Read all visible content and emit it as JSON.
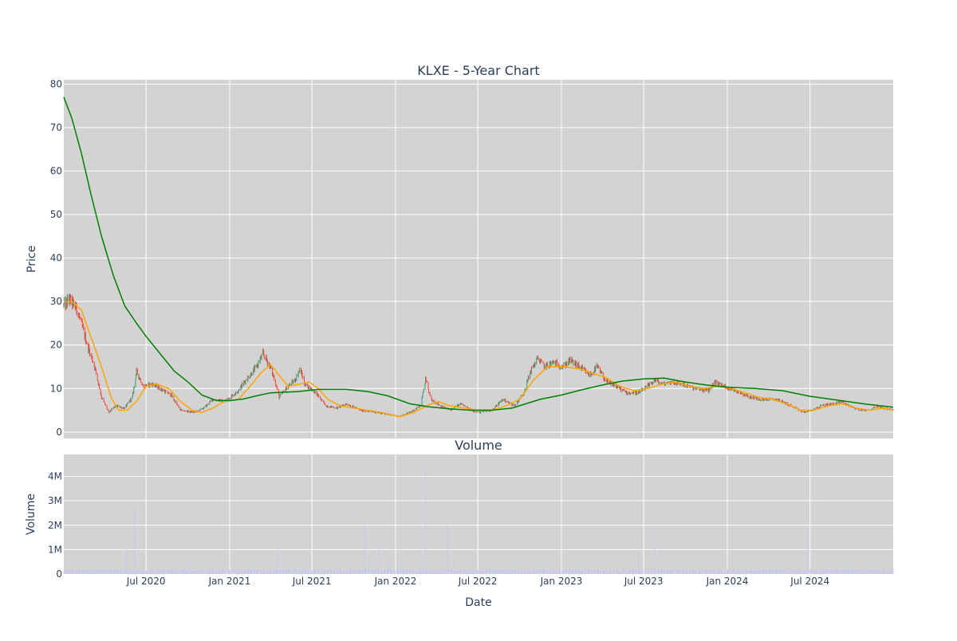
{
  "chart_data": [
    {
      "type": "candlestick",
      "title": "KLXE - 5-Year Chart",
      "xlabel": "",
      "ylabel": "Price",
      "xlim": [
        "2020-01-02",
        "2024-12-31"
      ],
      "ylim": [
        -1.5,
        81
      ],
      "y_ticks": [
        0,
        10,
        20,
        30,
        40,
        50,
        60,
        70,
        80
      ],
      "x_ticks": [
        "2020-07-01",
        "2021-01-01",
        "2021-07-01",
        "2022-01-01",
        "2022-07-01",
        "2023-01-01",
        "2023-07-01",
        "2024-01-01",
        "2024-07-01"
      ],
      "grid": true,
      "background_color": "#d3d3d3",
      "increasing_color": "#3d9970",
      "decreasing_color": "#ff4136",
      "close_anchors": [
        [
          "2020-01-02",
          29.0
        ],
        [
          "2020-01-15",
          30.5
        ],
        [
          "2020-02-01",
          28.0
        ],
        [
          "2020-02-20",
          21.0
        ],
        [
          "2020-03-10",
          15.0
        ],
        [
          "2020-03-25",
          8.0
        ],
        [
          "2020-04-10",
          4.5
        ],
        [
          "2020-04-25",
          6.0
        ],
        [
          "2020-05-15",
          5.5
        ],
        [
          "2020-06-01",
          8.0
        ],
        [
          "2020-06-10",
          14.0
        ],
        [
          "2020-06-25",
          10.5
        ],
        [
          "2020-07-15",
          11.0
        ],
        [
          "2020-08-01",
          10.0
        ],
        [
          "2020-08-25",
          8.5
        ],
        [
          "2020-09-15",
          5.0
        ],
        [
          "2020-10-15",
          4.5
        ],
        [
          "2020-11-05",
          5.5
        ],
        [
          "2020-11-25",
          7.5
        ],
        [
          "2020-12-20",
          7.0
        ],
        [
          "2021-01-15",
          9.0
        ],
        [
          "2021-02-10",
          12.5
        ],
        [
          "2021-03-01",
          15.0
        ],
        [
          "2021-03-15",
          18.0
        ],
        [
          "2021-03-29",
          15.5
        ],
        [
          "2021-04-10",
          12.0
        ],
        [
          "2021-04-20",
          8.0
        ],
        [
          "2021-05-05",
          10.0
        ],
        [
          "2021-05-25",
          12.0
        ],
        [
          "2021-06-05",
          14.5
        ],
        [
          "2021-06-15",
          11.0
        ],
        [
          "2021-07-10",
          9.0
        ],
        [
          "2021-08-01",
          6.0
        ],
        [
          "2021-08-25",
          5.5
        ],
        [
          "2021-09-15",
          6.5
        ],
        [
          "2021-10-15",
          5.0
        ],
        [
          "2021-11-20",
          4.5
        ],
        [
          "2021-12-20",
          4.0
        ],
        [
          "2022-01-10",
          3.5
        ],
        [
          "2022-02-01",
          4.5
        ],
        [
          "2022-02-25",
          6.0
        ],
        [
          "2022-03-08",
          12.0
        ],
        [
          "2022-03-20",
          7.5
        ],
        [
          "2022-04-10",
          6.0
        ],
        [
          "2022-05-01",
          5.0
        ],
        [
          "2022-05-25",
          6.5
        ],
        [
          "2022-06-15",
          5.0
        ],
        [
          "2022-07-05",
          4.5
        ],
        [
          "2022-08-01",
          5.0
        ],
        [
          "2022-08-25",
          7.5
        ],
        [
          "2022-09-20",
          6.0
        ],
        [
          "2022-10-10",
          9.0
        ],
        [
          "2022-10-25",
          14.0
        ],
        [
          "2022-11-10",
          17.0
        ],
        [
          "2022-11-25",
          15.0
        ],
        [
          "2022-12-15",
          16.0
        ],
        [
          "2023-01-05",
          15.0
        ],
        [
          "2023-01-20",
          16.5
        ],
        [
          "2023-02-15",
          14.5
        ],
        [
          "2023-03-05",
          13.0
        ],
        [
          "2023-03-20",
          15.0
        ],
        [
          "2023-04-10",
          11.5
        ],
        [
          "2023-05-01",
          10.5
        ],
        [
          "2023-05-25",
          9.0
        ],
        [
          "2023-06-20",
          9.0
        ],
        [
          "2023-07-10",
          10.5
        ],
        [
          "2023-07-25",
          12.0
        ],
        [
          "2023-08-10",
          11.0
        ],
        [
          "2023-09-01",
          11.5
        ],
        [
          "2023-09-25",
          11.0
        ],
        [
          "2023-10-20",
          10.0
        ],
        [
          "2023-11-20",
          9.5
        ],
        [
          "2023-12-05",
          11.5
        ],
        [
          "2023-12-25",
          10.5
        ],
        [
          "2024-01-20",
          9.5
        ],
        [
          "2024-02-20",
          8.0
        ],
        [
          "2024-03-20",
          7.5
        ],
        [
          "2024-04-20",
          7.5
        ],
        [
          "2024-05-20",
          6.0
        ],
        [
          "2024-06-15",
          4.5
        ],
        [
          "2024-07-05",
          5.0
        ],
        [
          "2024-07-25",
          6.0
        ],
        [
          "2024-08-20",
          6.5
        ],
        [
          "2024-09-10",
          7.0
        ],
        [
          "2024-09-25",
          6.0
        ],
        [
          "2024-10-20",
          5.0
        ],
        [
          "2024-11-10",
          5.0
        ],
        [
          "2024-11-25",
          6.0
        ],
        [
          "2024-12-10",
          5.5
        ],
        [
          "2024-12-31",
          5.0
        ]
      ],
      "series": [
        {
          "name": "",
          "color": "#ffa500",
          "points": [
            [
              "2020-01-02",
              30.0
            ],
            [
              "2020-01-20",
              30.0
            ],
            [
              "2020-02-10",
              28.0
            ],
            [
              "2020-03-01",
              22.0
            ],
            [
              "2020-03-25",
              15.0
            ],
            [
              "2020-04-15",
              8.0
            ],
            [
              "2020-05-01",
              5.0
            ],
            [
              "2020-05-20",
              5.0
            ],
            [
              "2020-06-10",
              7.0
            ],
            [
              "2020-07-01",
              10.5
            ],
            [
              "2020-07-25",
              11.0
            ],
            [
              "2020-08-20",
              10.0
            ],
            [
              "2020-09-15",
              7.0
            ],
            [
              "2020-10-10",
              5.0
            ],
            [
              "2020-11-01",
              4.5
            ],
            [
              "2020-11-25",
              5.5
            ],
            [
              "2020-12-20",
              7.0
            ],
            [
              "2021-01-20",
              7.5
            ],
            [
              "2021-02-15",
              10.5
            ],
            [
              "2021-03-10",
              13.5
            ],
            [
              "2021-04-01",
              15.5
            ],
            [
              "2021-04-20",
              13.0
            ],
            [
              "2021-05-10",
              10.5
            ],
            [
              "2021-06-05",
              11.0
            ],
            [
              "2021-06-25",
              11.5
            ],
            [
              "2021-07-15",
              10.0
            ],
            [
              "2021-08-05",
              7.5
            ],
            [
              "2021-09-01",
              6.0
            ],
            [
              "2021-10-01",
              5.5
            ],
            [
              "2021-11-01",
              5.0
            ],
            [
              "2021-12-01",
              4.5
            ],
            [
              "2022-01-10",
              3.5
            ],
            [
              "2022-02-10",
              4.5
            ],
            [
              "2022-03-10",
              6.0
            ],
            [
              "2022-04-05",
              7.0
            ],
            [
              "2022-05-01",
              6.0
            ],
            [
              "2022-06-01",
              5.5
            ],
            [
              "2022-07-01",
              5.0
            ],
            [
              "2022-08-01",
              5.0
            ],
            [
              "2022-09-01",
              6.0
            ],
            [
              "2022-10-01",
              7.5
            ],
            [
              "2022-11-01",
              12.0
            ],
            [
              "2022-12-01",
              15.0
            ],
            [
              "2023-01-10",
              15.0
            ],
            [
              "2023-02-10",
              14.5
            ],
            [
              "2023-03-10",
              13.5
            ],
            [
              "2023-04-10",
              12.5
            ],
            [
              "2023-05-10",
              10.5
            ],
            [
              "2023-06-10",
              9.5
            ],
            [
              "2023-07-10",
              10.0
            ],
            [
              "2023-08-10",
              11.0
            ],
            [
              "2023-09-10",
              11.5
            ],
            [
              "2023-10-10",
              10.5
            ],
            [
              "2023-11-10",
              10.0
            ],
            [
              "2023-12-10",
              10.5
            ],
            [
              "2024-01-10",
              10.0
            ],
            [
              "2024-02-10",
              9.0
            ],
            [
              "2024-03-10",
              8.0
            ],
            [
              "2024-04-10",
              7.5
            ],
            [
              "2024-05-10",
              6.5
            ],
            [
              "2024-06-10",
              5.0
            ],
            [
              "2024-07-10",
              5.0
            ],
            [
              "2024-08-10",
              6.0
            ],
            [
              "2024-09-10",
              6.5
            ],
            [
              "2024-10-10",
              5.5
            ],
            [
              "2024-11-10",
              5.0
            ],
            [
              "2024-12-10",
              5.5
            ],
            [
              "2024-12-31",
              5.0
            ]
          ]
        },
        {
          "name": "",
          "color": "#008000",
          "points": [
            [
              "2020-01-02",
              77.0
            ],
            [
              "2020-01-20",
              72.0
            ],
            [
              "2020-02-10",
              64.0
            ],
            [
              "2020-03-01",
              55.0
            ],
            [
              "2020-03-25",
              45.0
            ],
            [
              "2020-04-20",
              36.0
            ],
            [
              "2020-05-15",
              29.0
            ],
            [
              "2020-06-10",
              25.0
            ],
            [
              "2020-07-01",
              22.0
            ],
            [
              "2020-08-01",
              18.0
            ],
            [
              "2020-09-01",
              14.0
            ],
            [
              "2020-10-01",
              11.5
            ],
            [
              "2020-11-01",
              8.5
            ],
            [
              "2020-12-01",
              7.3
            ],
            [
              "2021-01-01",
              7.2
            ],
            [
              "2021-02-01",
              7.6
            ],
            [
              "2021-03-01",
              8.3
            ],
            [
              "2021-04-01",
              9.0
            ],
            [
              "2021-06-01",
              9.3
            ],
            [
              "2021-07-15",
              9.8
            ],
            [
              "2021-09-15",
              9.8
            ],
            [
              "2021-11-01",
              9.3
            ],
            [
              "2021-12-15",
              8.3
            ],
            [
              "2022-02-01",
              6.5
            ],
            [
              "2022-03-15",
              5.8
            ],
            [
              "2022-05-01",
              5.3
            ],
            [
              "2022-06-15",
              5.0
            ],
            [
              "2022-08-01",
              5.0
            ],
            [
              "2022-09-15",
              5.5
            ],
            [
              "2022-10-15",
              6.5
            ],
            [
              "2022-11-15",
              7.5
            ],
            [
              "2023-01-01",
              8.5
            ],
            [
              "2023-02-15",
              9.7
            ],
            [
              "2023-04-01",
              10.8
            ],
            [
              "2023-05-15",
              11.7
            ],
            [
              "2023-07-01",
              12.2
            ],
            [
              "2023-08-15",
              12.4
            ],
            [
              "2023-10-01",
              11.5
            ],
            [
              "2023-11-15",
              10.8
            ],
            [
              "2024-01-01",
              10.3
            ],
            [
              "2024-03-01",
              10.0
            ],
            [
              "2024-05-01",
              9.5
            ],
            [
              "2024-07-01",
              8.2
            ],
            [
              "2024-09-01",
              7.3
            ],
            [
              "2024-11-01",
              6.4
            ],
            [
              "2024-12-31",
              5.7
            ]
          ]
        }
      ]
    },
    {
      "type": "bar",
      "title": "Volume",
      "xlabel": "Date",
      "ylabel": "Volume",
      "ylim": [
        0,
        4900000
      ],
      "y_ticks": [
        0,
        1000000,
        2000000,
        3000000,
        4000000
      ],
      "y_tick_labels": [
        "0",
        "1M",
        "2M",
        "3M",
        "4M"
      ],
      "x_ticks": [
        "2020-07-01",
        "2021-01-01",
        "2021-07-01",
        "2022-01-01",
        "2022-07-01",
        "2023-01-01",
        "2023-07-01",
        "2024-01-01",
        "2024-07-01"
      ],
      "x_tick_labels": [
        "Jul 2020",
        "Jan 2021",
        "Jul 2021",
        "Jan 2022",
        "Jul 2022",
        "Jan 2023",
        "Jul 2023",
        "Jan 2024",
        "Jul 2024"
      ],
      "grid": true,
      "background_color": "#d3d3d3",
      "bar_color": "#c7c7ee",
      "baseline": 120000,
      "spikes": [
        [
          "2020-04-25",
          1900000
        ],
        [
          "2020-05-20",
          1200000
        ],
        [
          "2020-06-05",
          2600000
        ],
        [
          "2020-06-25",
          350000
        ],
        [
          "2020-08-10",
          250000
        ],
        [
          "2020-10-05",
          450000
        ],
        [
          "2020-10-25",
          600000
        ],
        [
          "2021-04-15",
          1150000
        ],
        [
          "2021-06-15",
          700000
        ],
        [
          "2021-09-05",
          1000000
        ],
        [
          "2021-10-25",
          2050000
        ],
        [
          "2021-11-05",
          800000
        ],
        [
          "2021-11-25",
          1250000
        ],
        [
          "2021-12-15",
          700000
        ],
        [
          "2022-01-05",
          700000
        ],
        [
          "2022-02-05",
          800000
        ],
        [
          "2022-03-08",
          4650000
        ],
        [
          "2022-03-12",
          3450000
        ],
        [
          "2022-04-25",
          2300000
        ],
        [
          "2022-05-10",
          600000
        ],
        [
          "2022-07-20",
          350000
        ],
        [
          "2022-08-20",
          750000
        ],
        [
          "2022-10-15",
          750000
        ],
        [
          "2022-10-30",
          1200000
        ],
        [
          "2022-11-25",
          600000
        ],
        [
          "2023-01-20",
          400000
        ],
        [
          "2023-05-20",
          450000
        ],
        [
          "2023-06-20",
          700000
        ],
        [
          "2023-07-25",
          1650000
        ],
        [
          "2023-08-20",
          450000
        ],
        [
          "2024-02-20",
          300000
        ],
        [
          "2024-03-10",
          700000
        ],
        [
          "2024-04-20",
          450000
        ],
        [
          "2024-05-10",
          400000
        ],
        [
          "2024-06-25",
          1850000
        ],
        [
          "2024-08-10",
          250000
        ]
      ]
    }
  ]
}
